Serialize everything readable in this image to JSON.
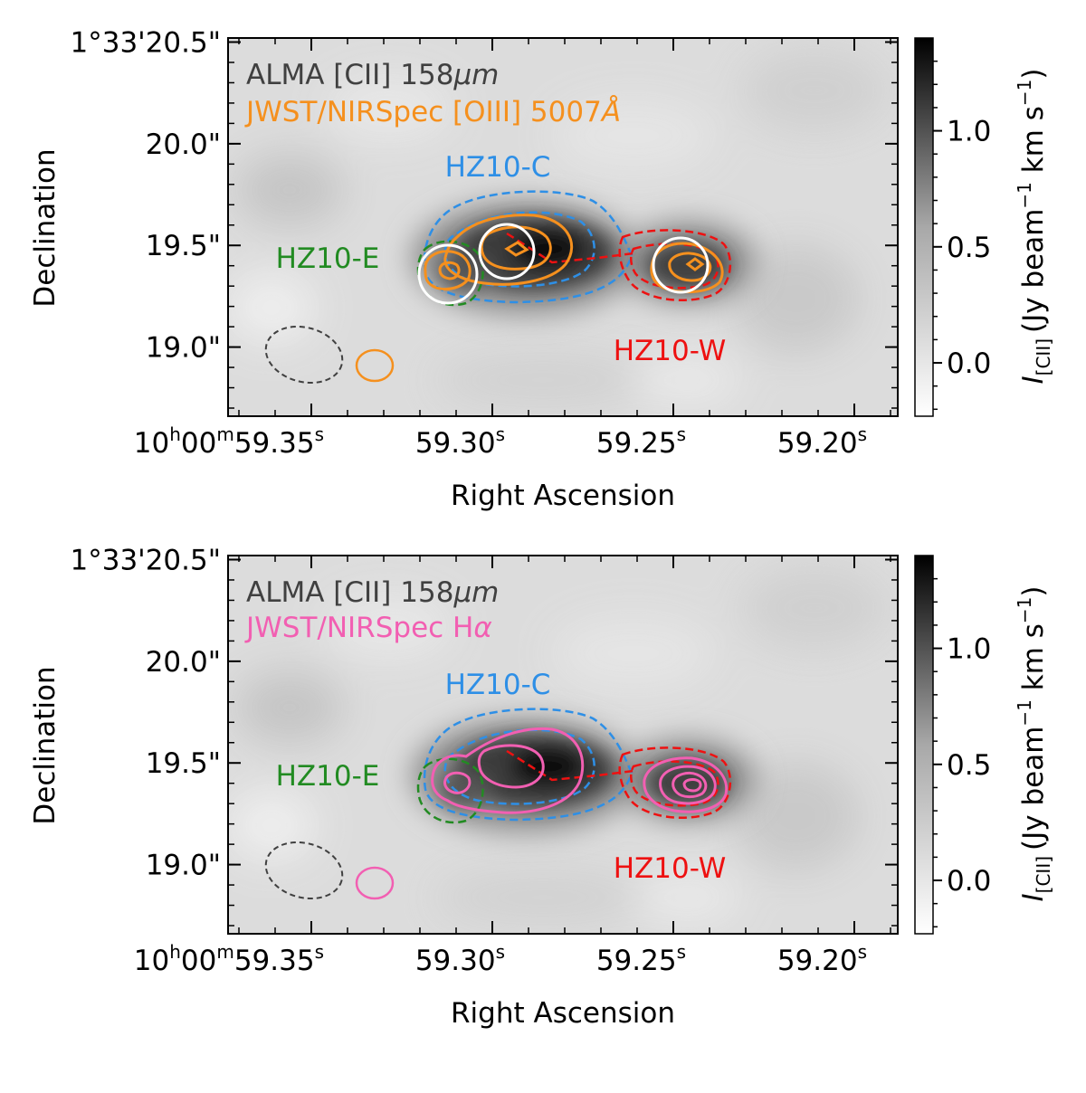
{
  "chart_data": [
    {
      "type": "heatmap",
      "panel": "top",
      "background_map": "ALMA [CII] 158 micron intensity (grayscale)",
      "labels": {
        "line1": "ALMA [CII] 158",
        "line1_unit": "μm",
        "line2": "JWST/NIRSpec [OIII] 5007",
        "line2_unit": "Å",
        "hz10c": "HZ10-C",
        "hz10e": "HZ10-E",
        "hz10w": "HZ10-W"
      },
      "colors": {
        "line1": "#404040",
        "line2": "#f5901e",
        "contour": "#f5901e",
        "hz10c": "#2e8fe6",
        "hz10e": "#228b22",
        "hz10w": "#ee1111",
        "apertures": "#ffffff",
        "beam_alma": "#404040"
      },
      "yaxis": {
        "label": "Declination",
        "ticks": [
          {
            "value": 20.5,
            "label": "1°33'20.5\""
          },
          {
            "value": 20.0,
            "label": "20.0\""
          },
          {
            "value": 19.5,
            "label": "19.5\""
          },
          {
            "value": 19.0,
            "label": "19.0\""
          }
        ],
        "range": [
          18.66,
          20.52
        ]
      },
      "xaxis": {
        "label": "Right Ascension",
        "ticks": [
          {
            "value": 59.35,
            "main": "10",
            "sup1": "h",
            "mid": "00",
            "sup2": "m",
            "num": "59.35",
            "sup3": "s"
          },
          {
            "value": 59.3,
            "num": "59.30",
            "sup3": "s"
          },
          {
            "value": 59.25,
            "num": "59.25",
            "sup3": "s"
          },
          {
            "value": 59.2,
            "num": "59.20",
            "sup3": "s"
          }
        ],
        "range": [
          59.373,
          59.188
        ]
      },
      "colorbar": {
        "label_sym": "I",
        "label_sub": "[CII]",
        "label_rest": "(Jy beam",
        "label_exp1": "−1",
        "label_mid": " km s",
        "label_exp2": "−1",
        "label_end": ")",
        "ticks": [
          {
            "value": 1.0,
            "label": "1.0"
          },
          {
            "value": 0.5,
            "label": "0.5"
          },
          {
            "value": 0.0,
            "label": "0.0"
          }
        ],
        "range": [
          -0.23,
          1.4
        ]
      }
    },
    {
      "type": "heatmap",
      "panel": "bottom",
      "background_map": "ALMA [CII] 158 micron intensity (grayscale)",
      "labels": {
        "line1": "ALMA [CII] 158",
        "line1_unit": "μm",
        "line2": "JWST/NIRSpec H",
        "line2_unit": "α",
        "hz10c": "HZ10-C",
        "hz10e": "HZ10-E",
        "hz10w": "HZ10-W"
      },
      "colors": {
        "line1": "#404040",
        "line2": "#f25fb2",
        "contour": "#f25fb2",
        "hz10c": "#2e8fe6",
        "hz10e": "#228b22",
        "hz10w": "#ee1111",
        "beam_alma": "#404040"
      },
      "yaxis": {
        "label": "Declination",
        "ticks": [
          {
            "value": 20.5,
            "label": "1°33'20.5\""
          },
          {
            "value": 20.0,
            "label": "20.0\""
          },
          {
            "value": 19.5,
            "label": "19.5\""
          },
          {
            "value": 19.0,
            "label": "19.0\""
          }
        ],
        "range": [
          18.66,
          20.52
        ]
      },
      "xaxis": {
        "label": "Right Ascension",
        "ticks": [
          {
            "value": 59.35,
            "main": "10",
            "sup1": "h",
            "mid": "00",
            "sup2": "m",
            "num": "59.35",
            "sup3": "s"
          },
          {
            "value": 59.3,
            "num": "59.30",
            "sup3": "s"
          },
          {
            "value": 59.25,
            "num": "59.25",
            "sup3": "s"
          },
          {
            "value": 59.2,
            "num": "59.20",
            "sup3": "s"
          }
        ],
        "range": [
          59.373,
          59.188
        ]
      },
      "colorbar": {
        "label_sym": "I",
        "label_sub": "[CII]",
        "label_rest": "(Jy beam",
        "label_exp1": "−1",
        "label_mid": " km s",
        "label_exp2": "−1",
        "label_end": ")",
        "ticks": [
          {
            "value": 1.0,
            "label": "1.0"
          },
          {
            "value": 0.5,
            "label": "0.5"
          },
          {
            "value": 0.0,
            "label": "0.0"
          }
        ],
        "range": [
          -0.23,
          1.4
        ]
      }
    }
  ]
}
